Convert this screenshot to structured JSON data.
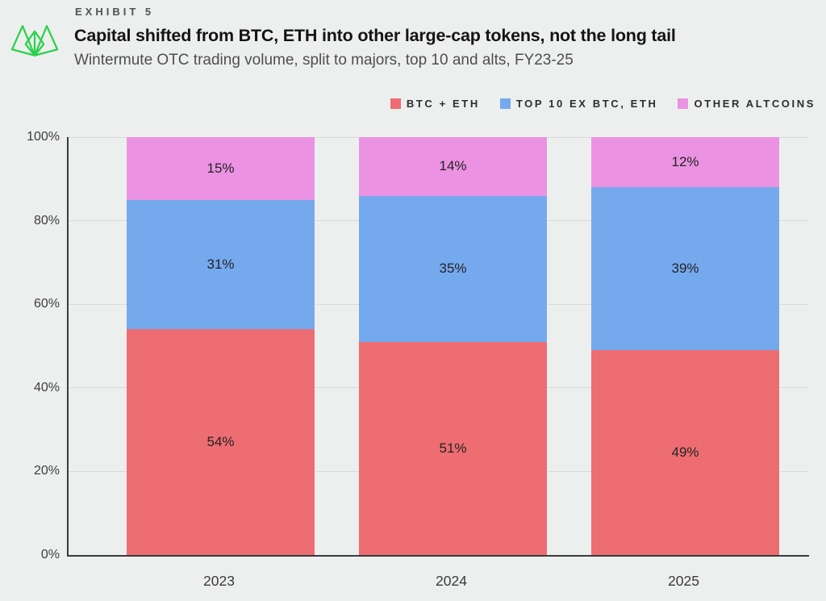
{
  "header": {
    "exhibit_label": "EXHIBIT 5",
    "title": "Capital shifted from BTC, ETH into other large-cap tokens, not the long tail",
    "subtitle": "Wintermute OTC trading volume, split to majors, top 10 and alts, FY23-25"
  },
  "colors": {
    "background": "#edefee",
    "logo_green": "#2bd14d",
    "axis": "#383c3e",
    "gridline": "#d8dbd9"
  },
  "chart_data": {
    "type": "bar",
    "stacked": true,
    "title": "Capital shifted from BTC, ETH into other large-cap tokens, not the long tail",
    "subtitle": "Wintermute OTC trading volume, split to majors, top 10 and alts, FY23-25",
    "categories": [
      "2023",
      "2024",
      "2025"
    ],
    "series": [
      {
        "name": "BTC + ETH",
        "color": "#ed6d72",
        "values": [
          54,
          51,
          49
        ],
        "labels": [
          "54%",
          "51%",
          "49%"
        ]
      },
      {
        "name": "TOP 10 EX BTC, ETH",
        "color": "#75a9ee",
        "values": [
          31,
          35,
          39
        ],
        "labels": [
          "31%",
          "35%",
          "39%"
        ]
      },
      {
        "name": "OTHER ALTCOINS",
        "color": "#ec92e2",
        "values": [
          15,
          14,
          12
        ],
        "labels": [
          "15%",
          "14%",
          "12%"
        ]
      }
    ],
    "value_suffix": "%",
    "xlabel": "",
    "ylabel": "",
    "ylim": [
      0,
      100
    ],
    "yticks": [
      0,
      20,
      40,
      60,
      80,
      100
    ],
    "ytick_labels": [
      "0%",
      "20%",
      "40%",
      "60%",
      "80%",
      "100%"
    ],
    "grid": "horizontal",
    "legend_position": "top-right"
  }
}
